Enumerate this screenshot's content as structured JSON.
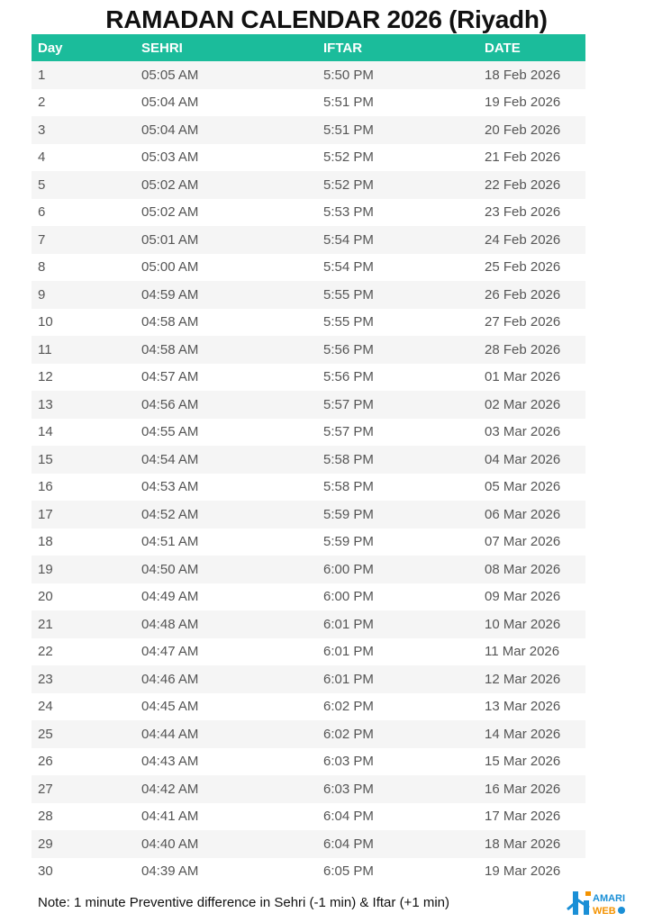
{
  "title": "RAMADAN CALENDAR 2026 (Riyadh)",
  "columns": [
    "Day",
    "SEHRI",
    "IFTAR",
    "DATE"
  ],
  "rows": [
    [
      "1",
      "05:05 AM",
      "5:50 PM",
      "18 Feb 2026"
    ],
    [
      "2",
      "05:04 AM",
      "5:51 PM",
      "19 Feb 2026"
    ],
    [
      "3",
      "05:04 AM",
      "5:51 PM",
      "20 Feb 2026"
    ],
    [
      "4",
      "05:03 AM",
      "5:52 PM",
      "21 Feb 2026"
    ],
    [
      "5",
      "05:02 AM",
      "5:52 PM",
      "22 Feb 2026"
    ],
    [
      "6",
      "05:02 AM",
      "5:53 PM",
      "23 Feb 2026"
    ],
    [
      "7",
      "05:01 AM",
      "5:54 PM",
      "24 Feb 2026"
    ],
    [
      "8",
      "05:00 AM",
      "5:54 PM",
      "25 Feb 2026"
    ],
    [
      "9",
      "04:59 AM",
      "5:55 PM",
      "26 Feb 2026"
    ],
    [
      "10",
      "04:58 AM",
      "5:55 PM",
      "27 Feb 2026"
    ],
    [
      "11",
      "04:58 AM",
      "5:56 PM",
      "28 Feb 2026"
    ],
    [
      "12",
      "04:57 AM",
      "5:56 PM",
      "01 Mar 2026"
    ],
    [
      "13",
      "04:56 AM",
      "5:57 PM",
      "02 Mar 2026"
    ],
    [
      "14",
      "04:55 AM",
      "5:57 PM",
      "03 Mar 2026"
    ],
    [
      "15",
      "04:54 AM",
      "5:58 PM",
      "04 Mar 2026"
    ],
    [
      "16",
      "04:53 AM",
      "5:58 PM",
      "05 Mar 2026"
    ],
    [
      "17",
      "04:52 AM",
      "5:59 PM",
      "06 Mar 2026"
    ],
    [
      "18",
      "04:51 AM",
      "5:59 PM",
      "07 Mar 2026"
    ],
    [
      "19",
      "04:50 AM",
      "6:00 PM",
      "08 Mar 2026"
    ],
    [
      "20",
      "04:49 AM",
      "6:00 PM",
      "09 Mar 2026"
    ],
    [
      "21",
      "04:48 AM",
      "6:01 PM",
      "10 Mar 2026"
    ],
    [
      "22",
      "04:47 AM",
      "6:01 PM",
      "11 Mar 2026"
    ],
    [
      "23",
      "04:46 AM",
      "6:01 PM",
      "12 Mar 2026"
    ],
    [
      "24",
      "04:45 AM",
      "6:02 PM",
      "13 Mar 2026"
    ],
    [
      "25",
      "04:44 AM",
      "6:02 PM",
      "14 Mar 2026"
    ],
    [
      "26",
      "04:43 AM",
      "6:03 PM",
      "15 Mar 2026"
    ],
    [
      "27",
      "04:42 AM",
      "6:03 PM",
      "16 Mar 2026"
    ],
    [
      "28",
      "04:41 AM",
      "6:04 PM",
      "17 Mar 2026"
    ],
    [
      "29",
      "04:40 AM",
      "6:04 PM",
      "18 Mar 2026"
    ],
    [
      "30",
      "04:39 AM",
      "6:05 PM",
      "19 Mar 2026"
    ]
  ],
  "note": "Note: 1 minute Preventive difference in Sehri (-1 min) & Iftar (+1 min)",
  "logo": {
    "text": "HAMARI WEB"
  },
  "colors": {
    "header": "#1bbc9b",
    "stripe": "#f5f5f5",
    "logo_blue": "#1a8fd6",
    "logo_orange": "#f39200"
  }
}
